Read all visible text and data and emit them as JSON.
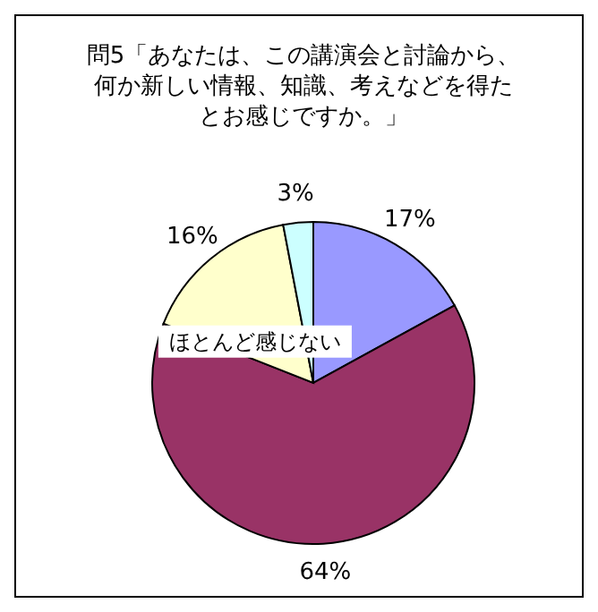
{
  "chart_data": {
    "type": "pie",
    "title": "問5「あなたは、この講演会と討論から、何か新しい情報、知識、考えなどを得たとお感じですか。」",
    "categories": [
      null,
      null,
      "ほとんど感じない",
      null
    ],
    "values": [
      17,
      64,
      16,
      3
    ],
    "value_labels": [
      "17%",
      "64%",
      "16%",
      "3%"
    ],
    "colors": [
      "#9999ff",
      "#993366",
      "#ffffcc",
      "#ccffff"
    ],
    "legend": false
  }
}
